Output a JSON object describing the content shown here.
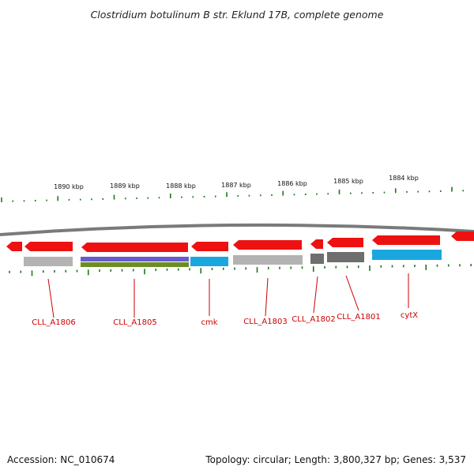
{
  "title": "Clostridium botulinum B str. Eklund 17B, complete genome",
  "footer": {
    "accession": "Accession: NC_010674",
    "topology": "Topology: circular; Length: 3,800,327 bp; Genes: 3,537"
  },
  "colors": {
    "cds": "#ee1111",
    "backbone": "#7a7a7a",
    "tick": "#1a7a1a",
    "label": "#cc0000",
    "gray": "#b3b3b3",
    "dark_gray": "#6e6e6e",
    "purple": "#6a5acd",
    "olive": "#6b8e23",
    "blue": "#1aa7e0"
  },
  "scale": {
    "ticks": [
      "1890 kbp",
      "1889 kbp",
      "1888 kbp",
      "1887 kbp",
      "1886 kbp",
      "1885 kbp",
      "1884 kbp"
    ]
  },
  "genes": [
    {
      "label": "",
      "icon": "arrow-left",
      "color": "cds"
    },
    {
      "label": "CLL_A1806",
      "icon": "arrow-left",
      "color": "cds",
      "annotation": [
        "gray"
      ]
    },
    {
      "label": "CLL_A1805",
      "icon": "arrow-left",
      "color": "cds",
      "annotation": [
        "purple",
        "olive"
      ]
    },
    {
      "label": "cmk",
      "icon": "arrow-left",
      "color": "cds",
      "annotation": [
        "blue"
      ]
    },
    {
      "label": "CLL_A1803",
      "icon": "arrow-left",
      "color": "cds",
      "annotation": [
        "gray"
      ]
    },
    {
      "label": "CLL_A1802",
      "icon": "arrow-left",
      "color": "cds",
      "annotation": [
        "dark_gray"
      ]
    },
    {
      "label": "CLL_A1801",
      "icon": "arrow-left",
      "color": "cds",
      "annotation": [
        "dark_gray"
      ]
    },
    {
      "label": "cytX",
      "icon": "arrow-left",
      "color": "cds",
      "annotation": [
        "blue"
      ]
    },
    {
      "label": "",
      "icon": "arrow-left",
      "color": "cds"
    }
  ]
}
